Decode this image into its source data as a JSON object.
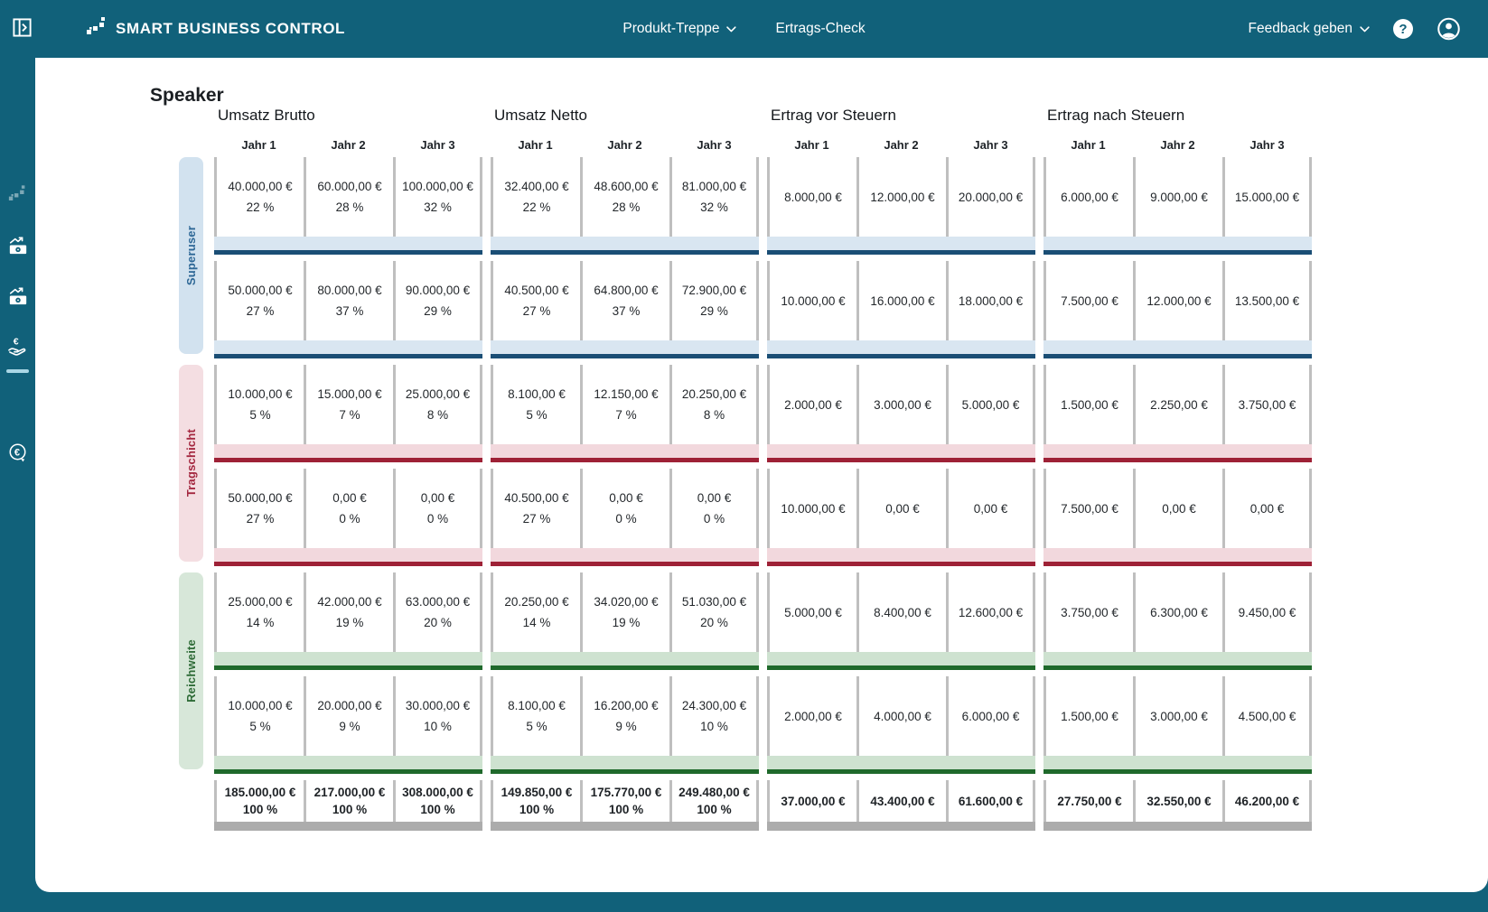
{
  "header": {
    "logo_text": "SMART BUSINESS CONTROL",
    "nav": [
      {
        "label": "Produkt-Treppe"
      },
      {
        "label": "Ertrags-Check"
      }
    ],
    "feedback_label": "Feedback geben",
    "help_glyph": "?"
  },
  "sidebar": {
    "icons": [
      "stairs-icon",
      "money-chart-icon",
      "money-chart-icon",
      "hand-euro-icon",
      "euro-cycle-icon"
    ]
  },
  "page": {
    "title": "Speaker"
  },
  "colors": {
    "teal": "#11617A",
    "blue_bar": "#1A4E75",
    "blue_strip": "#D9E6F1",
    "blue_band": "#D2E2EF",
    "red_bar": "#9E2136",
    "red_strip": "#F2D8DD",
    "red_band": "#F4DEE2",
    "green_bar": "#1F692B",
    "green_strip": "#CEE2D0",
    "green_band": "#D7E7D9",
    "gray_bar": "#ACACAC",
    "cell_border": "#BFBFBF"
  },
  "table": {
    "sections": [
      {
        "title": "Umsatz Brutto",
        "columns": [
          "Jahr 1",
          "Jahr 2",
          "Jahr 3"
        ]
      },
      {
        "title": "Umsatz Netto",
        "columns": [
          "Jahr 1",
          "Jahr 2",
          "Jahr 3"
        ]
      },
      {
        "title": "Ertrag vor Steuern",
        "columns": [
          "Jahr 1",
          "Jahr 2",
          "Jahr 3"
        ]
      },
      {
        "title": "Ertrag nach Steuern",
        "columns": [
          "Jahr 1",
          "Jahr 2",
          "Jahr 3"
        ]
      }
    ],
    "groups": [
      {
        "label": "Superuser",
        "theme": "blue",
        "rows": [
          {
            "sections": [
              [
                {
                  "value": "40.000,00 €",
                  "percent": "22 %"
                },
                {
                  "value": "60.000,00 €",
                  "percent": "28 %"
                },
                {
                  "value": "100.000,00 €",
                  "percent": "32 %"
                }
              ],
              [
                {
                  "value": "32.400,00 €",
                  "percent": "22 %"
                },
                {
                  "value": "48.600,00 €",
                  "percent": "28 %"
                },
                {
                  "value": "81.000,00 €",
                  "percent": "32 %"
                }
              ],
              [
                {
                  "value": "8.000,00 €"
                },
                {
                  "value": "12.000,00 €"
                },
                {
                  "value": "20.000,00 €"
                }
              ],
              [
                {
                  "value": "6.000,00 €"
                },
                {
                  "value": "9.000,00 €"
                },
                {
                  "value": "15.000,00 €"
                }
              ]
            ]
          },
          {
            "sections": [
              [
                {
                  "value": "50.000,00 €",
                  "percent": "27 %"
                },
                {
                  "value": "80.000,00 €",
                  "percent": "37 %"
                },
                {
                  "value": "90.000,00 €",
                  "percent": "29 %"
                }
              ],
              [
                {
                  "value": "40.500,00 €",
                  "percent": "27 %"
                },
                {
                  "value": "64.800,00 €",
                  "percent": "37 %"
                },
                {
                  "value": "72.900,00 €",
                  "percent": "29 %"
                }
              ],
              [
                {
                  "value": "10.000,00 €"
                },
                {
                  "value": "16.000,00 €"
                },
                {
                  "value": "18.000,00 €"
                }
              ],
              [
                {
                  "value": "7.500,00 €"
                },
                {
                  "value": "12.000,00 €"
                },
                {
                  "value": "13.500,00 €"
                }
              ]
            ]
          }
        ]
      },
      {
        "label": "Tragschicht",
        "theme": "red",
        "rows": [
          {
            "sections": [
              [
                {
                  "value": "10.000,00 €",
                  "percent": "5 %"
                },
                {
                  "value": "15.000,00 €",
                  "percent": "7 %"
                },
                {
                  "value": "25.000,00 €",
                  "percent": "8 %"
                }
              ],
              [
                {
                  "value": "8.100,00 €",
                  "percent": "5 %"
                },
                {
                  "value": "12.150,00 €",
                  "percent": "7 %"
                },
                {
                  "value": "20.250,00 €",
                  "percent": "8 %"
                }
              ],
              [
                {
                  "value": "2.000,00 €"
                },
                {
                  "value": "3.000,00 €"
                },
                {
                  "value": "5.000,00 €"
                }
              ],
              [
                {
                  "value": "1.500,00 €"
                },
                {
                  "value": "2.250,00 €"
                },
                {
                  "value": "3.750,00 €"
                }
              ]
            ]
          },
          {
            "sections": [
              [
                {
                  "value": "50.000,00 €",
                  "percent": "27 %"
                },
                {
                  "value": "0,00 €",
                  "percent": "0 %"
                },
                {
                  "value": "0,00 €",
                  "percent": "0 %"
                }
              ],
              [
                {
                  "value": "40.500,00 €",
                  "percent": "27 %"
                },
                {
                  "value": "0,00 €",
                  "percent": "0 %"
                },
                {
                  "value": "0,00 €",
                  "percent": "0 %"
                }
              ],
              [
                {
                  "value": "10.000,00 €"
                },
                {
                  "value": "0,00 €"
                },
                {
                  "value": "0,00 €"
                }
              ],
              [
                {
                  "value": "7.500,00 €"
                },
                {
                  "value": "0,00 €"
                },
                {
                  "value": "0,00 €"
                }
              ]
            ]
          }
        ]
      },
      {
        "label": "Reichweite",
        "theme": "green",
        "rows": [
          {
            "sections": [
              [
                {
                  "value": "25.000,00 €",
                  "percent": "14 %"
                },
                {
                  "value": "42.000,00 €",
                  "percent": "19 %"
                },
                {
                  "value": "63.000,00 €",
                  "percent": "20 %"
                }
              ],
              [
                {
                  "value": "20.250,00 €",
                  "percent": "14 %"
                },
                {
                  "value": "34.020,00 €",
                  "percent": "19 %"
                },
                {
                  "value": "51.030,00 €",
                  "percent": "20 %"
                }
              ],
              [
                {
                  "value": "5.000,00 €"
                },
                {
                  "value": "8.400,00 €"
                },
                {
                  "value": "12.600,00 €"
                }
              ],
              [
                {
                  "value": "3.750,00 €"
                },
                {
                  "value": "6.300,00 €"
                },
                {
                  "value": "9.450,00 €"
                }
              ]
            ]
          },
          {
            "sections": [
              [
                {
                  "value": "10.000,00 €",
                  "percent": "5 %"
                },
                {
                  "value": "20.000,00 €",
                  "percent": "9 %"
                },
                {
                  "value": "30.000,00 €",
                  "percent": "10 %"
                }
              ],
              [
                {
                  "value": "8.100,00 €",
                  "percent": "5 %"
                },
                {
                  "value": "16.200,00 €",
                  "percent": "9 %"
                },
                {
                  "value": "24.300,00 €",
                  "percent": "10 %"
                }
              ],
              [
                {
                  "value": "2.000,00 €"
                },
                {
                  "value": "4.000,00 €"
                },
                {
                  "value": "6.000,00 €"
                }
              ],
              [
                {
                  "value": "1.500,00 €"
                },
                {
                  "value": "3.000,00 €"
                },
                {
                  "value": "4.500,00 €"
                }
              ]
            ]
          }
        ]
      }
    ],
    "totals": {
      "sections": [
        [
          {
            "value": "185.000,00 €",
            "percent": "100 %"
          },
          {
            "value": "217.000,00 €",
            "percent": "100 %"
          },
          {
            "value": "308.000,00 €",
            "percent": "100 %"
          }
        ],
        [
          {
            "value": "149.850,00 €",
            "percent": "100 %"
          },
          {
            "value": "175.770,00 €",
            "percent": "100 %"
          },
          {
            "value": "249.480,00 €",
            "percent": "100 %"
          }
        ],
        [
          {
            "value": "37.000,00 €"
          },
          {
            "value": "43.400,00 €"
          },
          {
            "value": "61.600,00 €"
          }
        ],
        [
          {
            "value": "27.750,00 €"
          },
          {
            "value": "32.550,00 €"
          },
          {
            "value": "46.200,00 €"
          }
        ]
      ]
    }
  }
}
